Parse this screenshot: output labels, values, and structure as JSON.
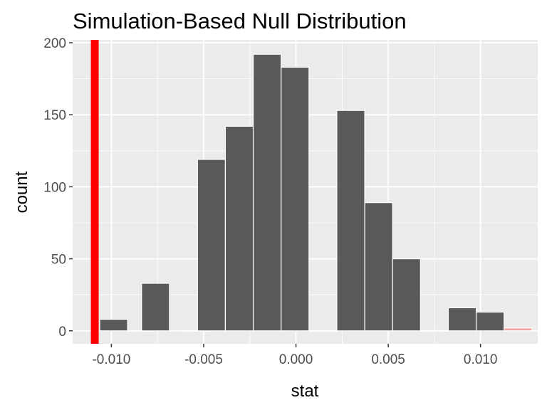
{
  "chart_data": {
    "type": "bar",
    "title": "Simulation-Based Null Distribution",
    "xlabel": "stat",
    "ylabel": "count",
    "xlim": [
      -0.0121,
      0.0131
    ],
    "ylim": [
      -9,
      202
    ],
    "x_ticks": [
      {
        "value": -0.01,
        "label": "-0.010"
      },
      {
        "value": -0.005,
        "label": "-0.005"
      },
      {
        "value": 0.0,
        "label": "0.000"
      },
      {
        "value": 0.005,
        "label": "0.005"
      },
      {
        "value": 0.01,
        "label": "0.010"
      }
    ],
    "y_ticks": [
      {
        "value": 0,
        "label": "0"
      },
      {
        "value": 50,
        "label": "50"
      },
      {
        "value": 100,
        "label": "100"
      },
      {
        "value": 150,
        "label": "150"
      },
      {
        "value": 200,
        "label": "200"
      }
    ],
    "bin_width": 0.00151,
    "bins": [
      {
        "center": -0.00988,
        "count": 8
      },
      {
        "center": -0.00837,
        "count": 0
      },
      {
        "center": -0.00761,
        "count": 33
      },
      {
        "center": -0.00534,
        "count": 0
      },
      {
        "center": -0.00458,
        "count": 119
      },
      {
        "center": -0.00307,
        "count": 142
      },
      {
        "center": -0.00156,
        "count": 192
      },
      {
        "center": -5e-05,
        "count": 183
      },
      {
        "center": 0.00146,
        "count": 0
      },
      {
        "center": 0.00297,
        "count": 153
      },
      {
        "center": 0.00448,
        "count": 89
      },
      {
        "center": 0.00599,
        "count": 50
      },
      {
        "center": 0.0075,
        "count": 0
      },
      {
        "center": 0.00901,
        "count": 16
      },
      {
        "center": 0.01052,
        "count": 13
      },
      {
        "center": 0.01203,
        "count": 2
      }
    ],
    "observed_stat": -0.0109,
    "shade_direction": "two-sided",
    "colors": {
      "panel": "#ebebeb",
      "grid_major": "#ffffff",
      "bar_fill": "#595959",
      "bar_outline": "#ffffff",
      "observed_line": "#ff0000",
      "shade": "#f4a3a3"
    },
    "grid": true,
    "legend": "none"
  }
}
